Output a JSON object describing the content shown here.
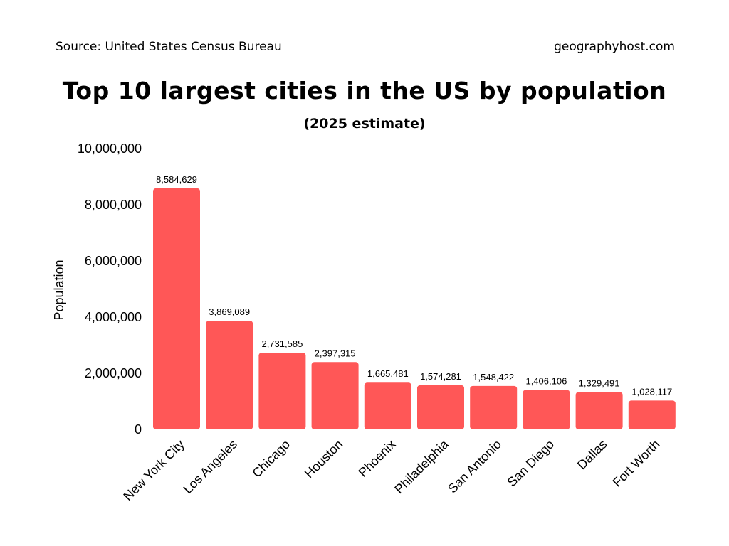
{
  "header": {
    "source": "Source: United States Census Bureau",
    "site": "geographyhost.com"
  },
  "chart_data": {
    "type": "bar",
    "title": "Top 10 largest cities in the US by population",
    "subtitle": "(2025 estimate)",
    "xlabel": "",
    "ylabel": "Population",
    "ylim": [
      0,
      10000000
    ],
    "yticks": [
      0,
      2000000,
      4000000,
      6000000,
      8000000,
      10000000
    ],
    "ytick_labels": [
      "0",
      "2,000,000",
      "4,000,000",
      "6,000,000",
      "8,000,000",
      "10,000,000"
    ],
    "grid": false,
    "bar_color": "#ff5757",
    "categories": [
      "New York City",
      "Los Angeles",
      "Chicago",
      "Houston",
      "Phoenix",
      "Philadelphia",
      "San Antonio",
      "San Diego",
      "Dallas",
      "Fort Worth"
    ],
    "values": [
      8584629,
      3869089,
      2731585,
      2397315,
      1665481,
      1574281,
      1548422,
      1406106,
      1329491,
      1028117
    ],
    "value_labels": [
      "8,584,629",
      "3,869,089",
      "2,731,585",
      "2,397,315",
      "1,665,481",
      "1,574,281",
      "1,548,422",
      "1,406,106",
      "1,329,491",
      "1,028,117"
    ]
  }
}
